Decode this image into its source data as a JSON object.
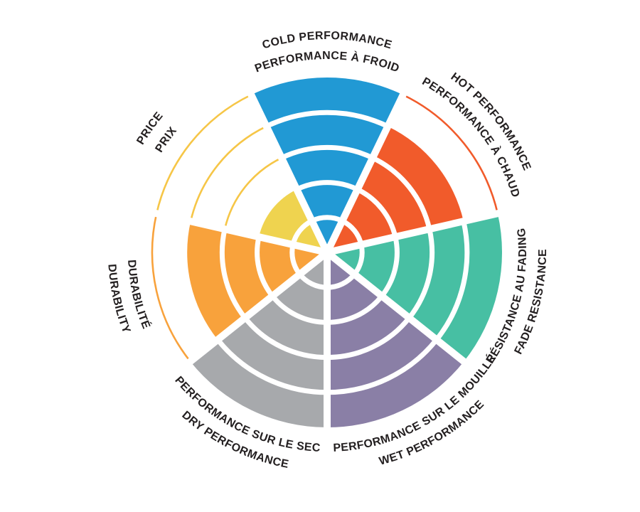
{
  "page": {
    "background": "#FFFFFF"
  },
  "chart_data": {
    "type": "bar",
    "subtype": "polar-wheel",
    "title": "",
    "scale": {
      "min": 0,
      "max": 5,
      "rings": 5
    },
    "legend": "none",
    "grid": "white ring dividers inside filled sectors, thin colored outline arcs for unfilled rings",
    "categories": [
      "COLD PERFORMANCE",
      "HOT PERFORMANCE",
      "FADE RESISTANCE",
      "WET PERFORMANCE",
      "DRY PERFORMANCE",
      "DURABILITY",
      "PRICE"
    ],
    "values": [
      5,
      4,
      5,
      5,
      5,
      4,
      2
    ],
    "sectors": [
      {
        "id": "cold-performance",
        "en": "COLD PERFORMANCE",
        "fr": "PERFORMANCE À FROID",
        "value": 5,
        "color": "#2199D4"
      },
      {
        "id": "hot-performance",
        "en": "HOT PERFORMANCE",
        "fr": "PERFORMANCE À CHAUD",
        "value": 4,
        "color": "#F15B2B"
      },
      {
        "id": "fade-resistance",
        "en": "FADE RESISTANCE",
        "fr": "RÉSISTANCE AU FADING",
        "value": 5,
        "color": "#47BFA3"
      },
      {
        "id": "wet-performance",
        "en": "WET PERFORMANCE",
        "fr": "PERFORMANCE SUR LE MOUILLÉ",
        "value": 5,
        "color": "#8A7FA6"
      },
      {
        "id": "dry-performance",
        "en": "DRY PERFORMANCE",
        "fr": "PERFORMANCE SUR LE SEC",
        "value": 5,
        "color": "#A7A9AC"
      },
      {
        "id": "durability",
        "en": "DURABILITY",
        "fr": "DURABILITÉ",
        "value": 4,
        "color": "#F8A23C"
      },
      {
        "id": "price",
        "en": "PRICE",
        "fr": "PRIX",
        "value": 2,
        "color": "#EFD34F",
        "outline_color": "#F6C647"
      }
    ],
    "style": {
      "background": "#FFFFFF",
      "label_color": "#231F20",
      "ring_line_color": "#FFFFFF"
    }
  }
}
